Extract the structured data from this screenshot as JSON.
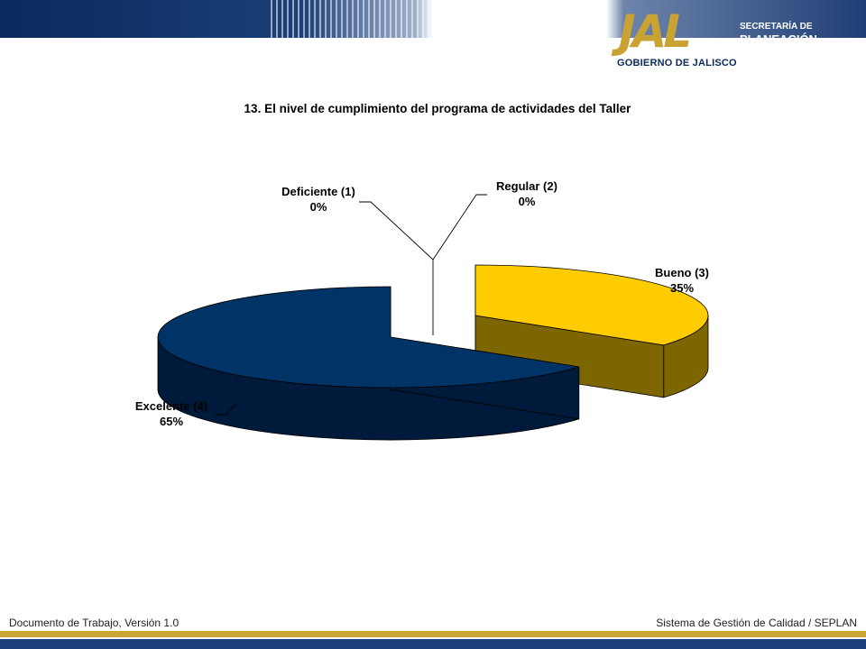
{
  "header": {
    "logo_mark": "JAL",
    "secretaria": "SECRETARÍA DE",
    "planeacion": "PLANEACIÓN",
    "gobierno": "GOBIERNO DE JALISCO"
  },
  "chart_data": {
    "type": "pie",
    "title": "13. El nivel de cumplimiento del programa de actividades del Taller",
    "slices": [
      {
        "label": "Deficiente (1)",
        "value": 0,
        "percent_label": "0%",
        "color": "#6e7b9c"
      },
      {
        "label": "Regular (2)",
        "value": 0,
        "percent_label": "0%",
        "color": "#8c8c8c"
      },
      {
        "label": "Bueno (3)",
        "value": 35,
        "percent_label": "35%",
        "color": "#ffcc00"
      },
      {
        "label": "Excelente (4)",
        "value": 65,
        "percent_label": "65%",
        "color": "#003366"
      }
    ],
    "style": "3d-exploded"
  },
  "footer": {
    "left": "Documento de Trabajo, Versión 1.0",
    "right": "Sistema de Gestión de Calidad / SEPLAN"
  },
  "colors": {
    "navy": "#0a2a5c",
    "gold": "#c8a233",
    "bueno_top": "#ffcc00",
    "bueno_side": "#7d6500",
    "excelente_top": "#003366",
    "excelente_side": "#001a3b"
  }
}
